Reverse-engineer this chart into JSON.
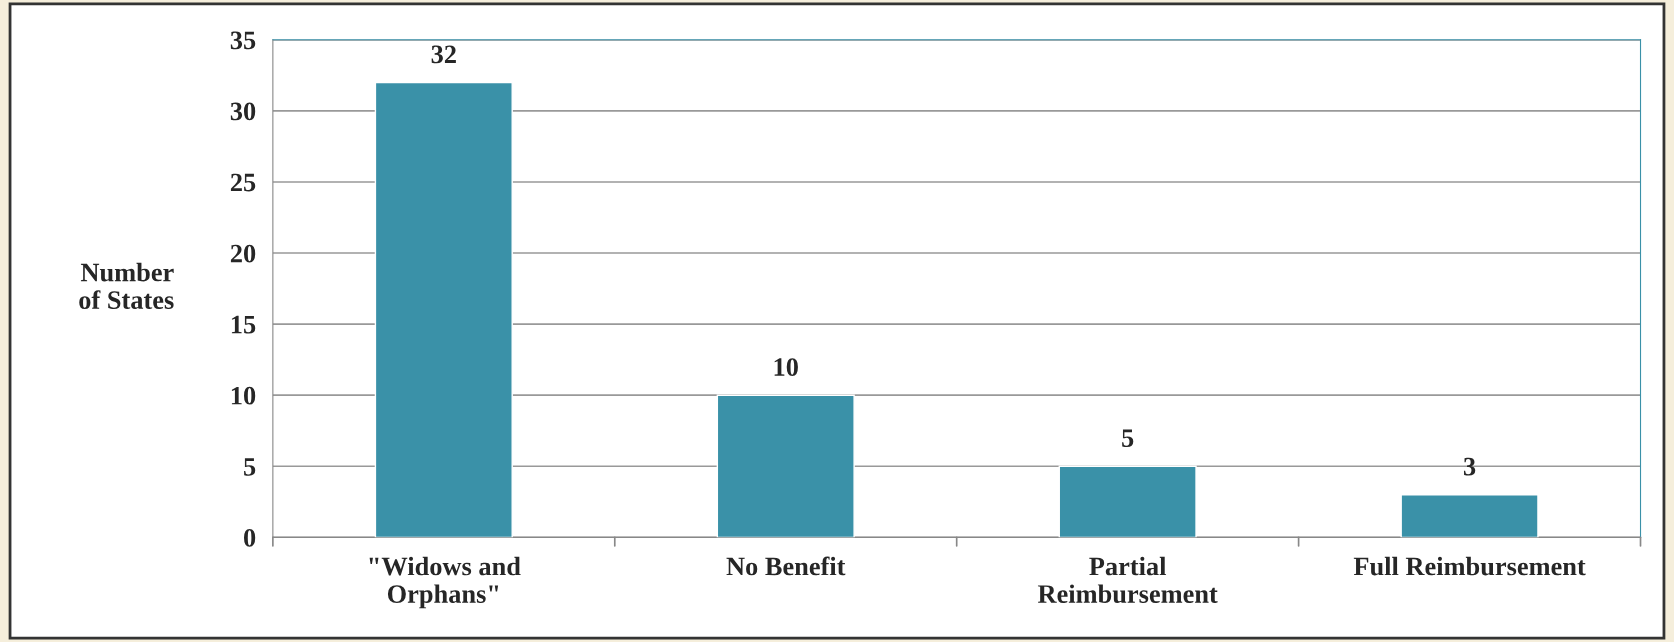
{
  "chart_data": {
    "type": "bar",
    "ylabel": "Number\nof States",
    "categories": [
      "\"Widows and\nOrphans\"",
      "No Benefit",
      "Partial\nReimbursement",
      "Full Reimbursement"
    ],
    "values": [
      32,
      10,
      5,
      3
    ],
    "color": "#3a91a8",
    "ylim": [
      0,
      35
    ],
    "yticks": [
      0,
      5,
      10,
      15,
      20,
      25,
      30,
      35
    ],
    "grid": "y",
    "data_labels": true
  }
}
